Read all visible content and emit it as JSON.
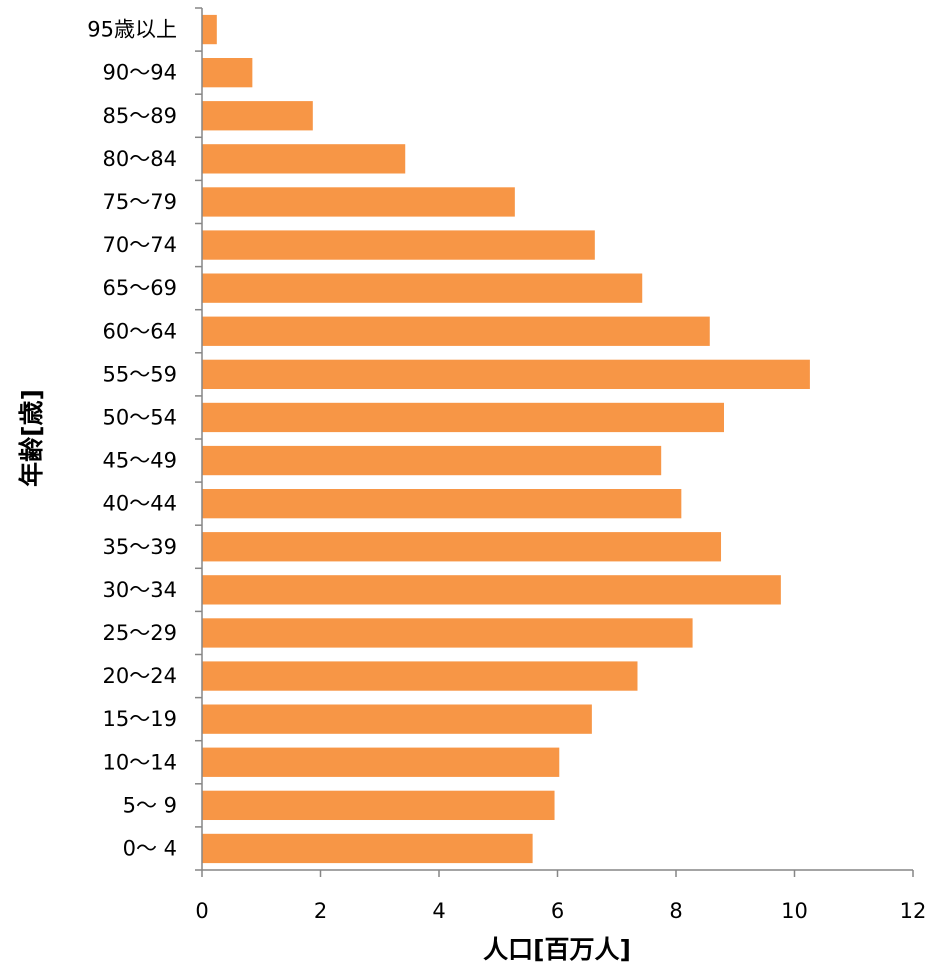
{
  "chart_data": {
    "type": "bar",
    "orientation": "horizontal",
    "categories": [
      "0〜 4",
      "5〜 9",
      "10〜14",
      "15〜19",
      "20〜24",
      "25〜29",
      "30〜34",
      "35〜39",
      "40〜44",
      "45〜49",
      "50〜54",
      "55〜59",
      "60〜64",
      "65〜69",
      "70〜74",
      "75〜79",
      "80〜84",
      "85〜89",
      "90〜94",
      "95歳以上"
    ],
    "values": [
      5.58,
      5.95,
      6.03,
      6.58,
      7.35,
      8.28,
      9.77,
      8.76,
      8.09,
      7.75,
      8.81,
      10.26,
      8.57,
      7.43,
      6.63,
      5.28,
      3.43,
      1.87,
      0.85,
      0.25
    ],
    "xlabel": "人口[百万人]",
    "ylabel": "年齢[歳]",
    "xlim": [
      0,
      12
    ],
    "xticks": [
      0,
      2,
      4,
      6,
      8,
      10,
      12
    ],
    "bar_color": "#F79646",
    "grid": false,
    "legend": "none"
  }
}
